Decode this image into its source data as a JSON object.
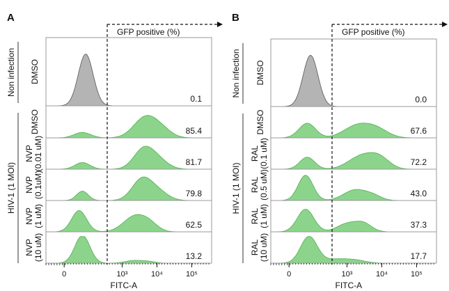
{
  "chart_data": {
    "type": "area",
    "description": "Flow cytometry histograms (FITC-A) showing GFP-positive percentage",
    "x_axis": {
      "label": "FITC-A",
      "scale": "biexponential",
      "tick_labels": [
        "0",
        "10³",
        "10⁴",
        "10⁵"
      ]
    },
    "gate_label": "GFP positive (%)",
    "colors": {
      "uninfected_fill": "#b4b4b4",
      "infected_fill": "#7fcf7f",
      "infected_stroke": "#4fae4f",
      "frame": "#999999"
    },
    "panels": [
      {
        "letter": "A",
        "group_labels": [
          "Non infection",
          "HIV-1 (1 MOI)"
        ],
        "rows": [
          {
            "group": "Non infection",
            "label": [
              "DMSO"
            ],
            "gfp_positive": "0.1",
            "color": "gray"
          },
          {
            "group": "HIV-1 (1 MOI)",
            "label": [
              "DMSO"
            ],
            "gfp_positive": "85.4",
            "color": "green"
          },
          {
            "group": "HIV-1 (1 MOI)",
            "label": [
              "NVP",
              "(0.01 uM)"
            ],
            "gfp_positive": "81.7",
            "color": "green"
          },
          {
            "group": "HIV-1 (1 MOI)",
            "label": [
              "NVP",
              "(0.1uM)"
            ],
            "gfp_positive": "79.8",
            "color": "green"
          },
          {
            "group": "HIV-1 (1 MOI)",
            "label": [
              "NVP",
              "(1 uM)"
            ],
            "gfp_positive": "62.5",
            "color": "green"
          },
          {
            "group": "HIV-1 (1 MOI)",
            "label": [
              "NVP",
              "(10 uM)"
            ],
            "gfp_positive": "13.2",
            "color": "green"
          }
        ]
      },
      {
        "letter": "B",
        "group_labels": [
          "Non infection",
          "HIV-1 (1 MOI)"
        ],
        "rows": [
          {
            "group": "Non infection",
            "label": [
              "DMSO"
            ],
            "gfp_positive": "0.0",
            "color": "gray"
          },
          {
            "group": "HIV-1 (1 MOI)",
            "label": [
              "DMSO"
            ],
            "gfp_positive": "67.6",
            "color": "green"
          },
          {
            "group": "HIV-1 (1 MOI)",
            "label": [
              "RAL",
              "(0.1 uM)"
            ],
            "gfp_positive": "72.2",
            "color": "green"
          },
          {
            "group": "HIV-1 (1 MOI)",
            "label": [
              "RAL",
              "(0.5 uM)"
            ],
            "gfp_positive": "43.0",
            "color": "green"
          },
          {
            "group": "HIV-1 (1 MOI)",
            "label": [
              "RAL",
              "(1 uM)"
            ],
            "gfp_positive": "37.3",
            "color": "green"
          },
          {
            "group": "HIV-1 (1 MOI)",
            "label": [
              "RAL",
              "(10 uM)"
            ],
            "gfp_positive": "17.7",
            "color": "green"
          }
        ]
      }
    ]
  }
}
